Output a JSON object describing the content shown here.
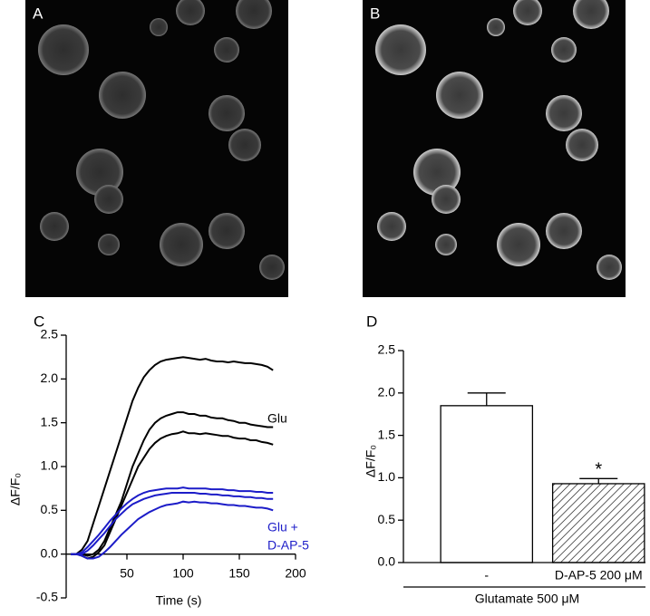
{
  "images": [
    {
      "label": "A"
    },
    {
      "label": "B"
    }
  ],
  "chart_data": [
    {
      "type": "line",
      "panel_label": "C",
      "xlabel": "Time (s)",
      "ylabel": "ΔF/F₀",
      "x": [
        0,
        5,
        10,
        15,
        20,
        25,
        30,
        35,
        40,
        45,
        50,
        55,
        60,
        65,
        70,
        75,
        80,
        85,
        90,
        95,
        100,
        105,
        110,
        115,
        120,
        125,
        130,
        135,
        140,
        145,
        150,
        155,
        160,
        165,
        170,
        175,
        180
      ],
      "series": [
        {
          "color": "#000000",
          "values": [
            0,
            0,
            0.05,
            0.15,
            0.35,
            0.55,
            0.75,
            0.95,
            1.15,
            1.35,
            1.55,
            1.75,
            1.9,
            2.02,
            2.1,
            2.16,
            2.2,
            2.22,
            2.23,
            2.24,
            2.25,
            2.24,
            2.23,
            2.22,
            2.23,
            2.21,
            2.2,
            2.2,
            2.19,
            2.2,
            2.19,
            2.18,
            2.18,
            2.17,
            2.16,
            2.14,
            2.1
          ]
        },
        {
          "color": "#000000",
          "values": [
            0,
            0,
            0,
            -0.02,
            0,
            0.05,
            0.15,
            0.3,
            0.45,
            0.6,
            0.8,
            1.0,
            1.15,
            1.3,
            1.42,
            1.5,
            1.55,
            1.58,
            1.6,
            1.62,
            1.62,
            1.6,
            1.6,
            1.58,
            1.58,
            1.56,
            1.55,
            1.55,
            1.53,
            1.52,
            1.5,
            1.5,
            1.48,
            1.47,
            1.46,
            1.45,
            1.45
          ]
        },
        {
          "color": "#000000",
          "values": [
            0,
            0,
            -0.02,
            -0.05,
            -0.03,
            0.02,
            0.1,
            0.25,
            0.4,
            0.55,
            0.7,
            0.85,
            1.0,
            1.1,
            1.2,
            1.27,
            1.32,
            1.35,
            1.37,
            1.38,
            1.4,
            1.38,
            1.38,
            1.37,
            1.38,
            1.37,
            1.36,
            1.35,
            1.35,
            1.33,
            1.32,
            1.32,
            1.3,
            1.3,
            1.28,
            1.27,
            1.25
          ]
        },
        {
          "color": "#1c1cc8",
          "values": [
            0,
            0,
            0.02,
            0.08,
            0.15,
            0.22,
            0.3,
            0.38,
            0.45,
            0.52,
            0.58,
            0.63,
            0.67,
            0.7,
            0.72,
            0.73,
            0.74,
            0.75,
            0.75,
            0.75,
            0.76,
            0.75,
            0.75,
            0.75,
            0.75,
            0.74,
            0.74,
            0.74,
            0.73,
            0.73,
            0.72,
            0.72,
            0.72,
            0.71,
            0.71,
            0.7,
            0.7
          ]
        },
        {
          "color": "#1c1cc8",
          "values": [
            0,
            0,
            0,
            0.04,
            0.1,
            0.17,
            0.24,
            0.32,
            0.4,
            0.46,
            0.52,
            0.57,
            0.6,
            0.63,
            0.65,
            0.67,
            0.68,
            0.69,
            0.7,
            0.7,
            0.7,
            0.7,
            0.7,
            0.69,
            0.69,
            0.68,
            0.68,
            0.67,
            0.67,
            0.66,
            0.66,
            0.65,
            0.65,
            0.64,
            0.64,
            0.63,
            0.63
          ]
        },
        {
          "color": "#1c1cc8",
          "values": [
            0,
            0,
            -0.02,
            -0.05,
            -0.05,
            -0.03,
            0.02,
            0.08,
            0.15,
            0.22,
            0.28,
            0.34,
            0.4,
            0.44,
            0.48,
            0.51,
            0.54,
            0.56,
            0.57,
            0.58,
            0.6,
            0.59,
            0.6,
            0.59,
            0.59,
            0.58,
            0.58,
            0.57,
            0.56,
            0.56,
            0.55,
            0.55,
            0.54,
            0.53,
            0.53,
            0.52,
            0.5
          ]
        }
      ],
      "annotations": [
        {
          "text": "Glu",
          "color": "#000000"
        },
        {
          "text": "Glu +",
          "color": "#1c1cc8"
        },
        {
          "text": "D-AP-5",
          "color": "#1c1cc8"
        }
      ],
      "xlim": [
        0,
        200
      ],
      "xticks": [
        50,
        100,
        150,
        200
      ],
      "ylim": [
        -0.5,
        2.5
      ],
      "yticks": [
        -0.5,
        {
          "value": 0,
          "label": "0.0"
        },
        0.5,
        {
          "value": 1,
          "label": "1.0"
        },
        1.5,
        {
          "value": 2,
          "label": "2.0"
        },
        2.5
      ]
    },
    {
      "type": "bar",
      "panel_label": "D",
      "ylabel": "ΔF/F₀",
      "group_label": "Glutamate 500 μM",
      "categories": [
        "-",
        "D-AP-5 200  μM"
      ],
      "values": [
        1.85,
        0.93
      ],
      "errors": [
        0.15,
        0.06
      ],
      "fills": [
        "white",
        "hatched"
      ],
      "annotation": "*",
      "ylim": [
        0,
        2.5
      ],
      "yticks": [
        {
          "value": 0,
          "label": "0.0"
        },
        0.5,
        {
          "value": 1,
          "label": "1.0"
        },
        1.5,
        {
          "value": 2,
          "label": "2.0"
        },
        2.5
      ]
    }
  ]
}
